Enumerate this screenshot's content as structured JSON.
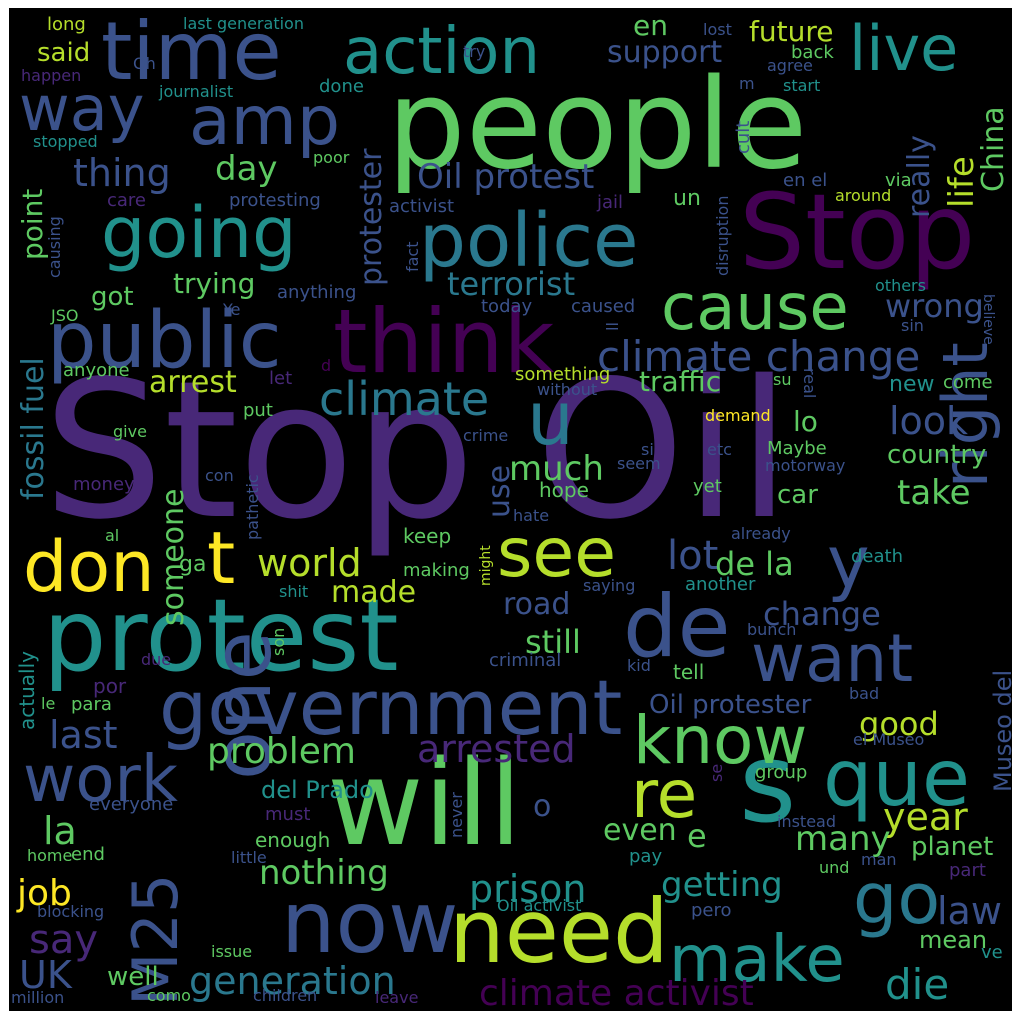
{
  "background": "#000000",
  "colormap": "viridis",
  "words": [
    {
      "text": "Stop Oil",
      "color": "#482878"
    },
    {
      "text": "people",
      "color": "#5ec962"
    },
    {
      "text": "Stop",
      "color": "#440154"
    },
    {
      "text": "protest",
      "color": "#21918c"
    },
    {
      "text": "will",
      "color": "#5ec962"
    },
    {
      "text": "think",
      "color": "#440154"
    },
    {
      "text": "government",
      "color": "#3b528b"
    },
    {
      "text": "public",
      "color": "#3b528b"
    },
    {
      "text": "time",
      "color": "#3b528b"
    },
    {
      "text": "need",
      "color": "#b5de2b"
    },
    {
      "text": "one",
      "color": "#3b528b"
    },
    {
      "text": "now",
      "color": "#3b528b"
    },
    {
      "text": "police",
      "color": "#2a788e"
    },
    {
      "text": "de",
      "color": "#3b528b"
    },
    {
      "text": "que",
      "color": "#21918c"
    },
    {
      "text": "action",
      "color": "#21918c"
    },
    {
      "text": "going",
      "color": "#21918c"
    },
    {
      "text": "amp",
      "color": "#3b528b"
    },
    {
      "text": "way",
      "color": "#3b528b"
    },
    {
      "text": "cause",
      "color": "#5ec962"
    },
    {
      "text": "s",
      "color": "#21918c"
    },
    {
      "text": "don",
      "color": "#fde725"
    },
    {
      "text": "t",
      "color": "#fde725"
    },
    {
      "text": "see",
      "color": "#b5de2b"
    },
    {
      "text": "want",
      "color": "#3b528b"
    },
    {
      "text": "right",
      "color": "#3b528b"
    },
    {
      "text": "y",
      "color": "#3b528b"
    },
    {
      "text": "u",
      "color": "#2a788e"
    },
    {
      "text": "know",
      "color": "#5ec962"
    },
    {
      "text": "work",
      "color": "#3b528b"
    },
    {
      "text": "make",
      "color": "#21918c"
    },
    {
      "text": "go",
      "color": "#2a788e"
    },
    {
      "text": "re",
      "color": "#b5de2b"
    },
    {
      "text": "M25",
      "color": "#3b528b"
    },
    {
      "text": "live",
      "color": "#21918c"
    },
    {
      "text": "climate change",
      "color": "#3b528b"
    },
    {
      "text": "climate",
      "color": "#2a788e"
    },
    {
      "text": "climate activist",
      "color": "#440154"
    },
    {
      "text": "generation",
      "color": "#2a788e"
    },
    {
      "text": "arrested",
      "color": "#482878"
    },
    {
      "text": "prison",
      "color": "#21918c"
    },
    {
      "text": "die",
      "color": "#21918c"
    },
    {
      "text": "world",
      "color": "#b5de2b"
    },
    {
      "text": "lot",
      "color": "#3b528b"
    },
    {
      "text": "thing",
      "color": "#3b528b"
    },
    {
      "text": "day",
      "color": "#5ec962"
    },
    {
      "text": "Oil protest",
      "color": "#3b528b"
    },
    {
      "text": "terrorist",
      "color": "#2a788e"
    },
    {
      "text": "protester",
      "color": "#3b528b"
    },
    {
      "text": "fossil fuel",
      "color": "#2a788e"
    },
    {
      "text": "point",
      "color": "#5ec962"
    },
    {
      "text": "last",
      "color": "#3b528b"
    },
    {
      "text": "problem",
      "color": "#5ec962"
    },
    {
      "text": "say",
      "color": "#482878"
    },
    {
      "text": "UK",
      "color": "#3b528b"
    },
    {
      "text": "job",
      "color": "#fde725"
    },
    {
      "text": "la",
      "color": "#5ec962"
    },
    {
      "text": "nothing",
      "color": "#5ec962"
    },
    {
      "text": "getting",
      "color": "#21918c"
    },
    {
      "text": "year",
      "color": "#b5de2b"
    },
    {
      "text": "many",
      "color": "#5ec962"
    },
    {
      "text": "law",
      "color": "#3b528b"
    },
    {
      "text": "take",
      "color": "#5ec962"
    },
    {
      "text": "look",
      "color": "#3b528b"
    },
    {
      "text": "life",
      "color": "#b5de2b"
    },
    {
      "text": "China",
      "color": "#5ec962"
    },
    {
      "text": "really",
      "color": "#3b528b"
    },
    {
      "text": "wrong",
      "color": "#3b528b"
    },
    {
      "text": "de la",
      "color": "#5ec962"
    },
    {
      "text": "change",
      "color": "#3b528b"
    },
    {
      "text": "still",
      "color": "#5ec962"
    },
    {
      "text": "road",
      "color": "#3b528b"
    },
    {
      "text": "made",
      "color": "#b5de2b"
    },
    {
      "text": "someone",
      "color": "#5ec962"
    },
    {
      "text": "much",
      "color": "#5ec962"
    },
    {
      "text": "use",
      "color": "#3b528b"
    },
    {
      "text": "arrest",
      "color": "#b5de2b"
    },
    {
      "text": "traffic",
      "color": "#5ec962"
    },
    {
      "text": "support",
      "color": "#3b528b"
    },
    {
      "text": "future",
      "color": "#b5de2b"
    },
    {
      "text": "en",
      "color": "#5ec962"
    },
    {
      "text": "said",
      "color": "#b5de2b"
    },
    {
      "text": "trying",
      "color": "#5ec962"
    },
    {
      "text": "got",
      "color": "#5ec962"
    },
    {
      "text": "good",
      "color": "#b5de2b"
    },
    {
      "text": "Oil protester",
      "color": "#3b528b"
    },
    {
      "text": "Museo del",
      "color": "#3b528b"
    },
    {
      "text": "del Prado",
      "color": "#21918c"
    },
    {
      "text": "even",
      "color": "#5ec962"
    },
    {
      "text": "e",
      "color": "#5ec962"
    },
    {
      "text": "o",
      "color": "#3b528b"
    },
    {
      "text": "well",
      "color": "#5ec962"
    },
    {
      "text": "planet",
      "color": "#5ec962"
    },
    {
      "text": "mean",
      "color": "#5ec962"
    },
    {
      "text": "country",
      "color": "#5ec962"
    },
    {
      "text": "car",
      "color": "#5ec962"
    },
    {
      "text": "lo",
      "color": "#5ec962"
    },
    {
      "text": "new",
      "color": "#21918c"
    },
    {
      "text": "long",
      "color": "#b5de2b"
    },
    {
      "text": "last generation",
      "color": "#21918c"
    },
    {
      "text": "lost",
      "color": "#3b528b"
    },
    {
      "text": "back",
      "color": "#5ec962"
    },
    {
      "text": "agree",
      "color": "#3b528b"
    },
    {
      "text": "start",
      "color": "#21918c"
    },
    {
      "text": "Oh",
      "color": "#3b528b"
    },
    {
      "text": "try",
      "color": "#3b528b"
    },
    {
      "text": "happen",
      "color": "#482878"
    },
    {
      "text": "journalist",
      "color": "#21918c"
    },
    {
      "text": "done",
      "color": "#21918c"
    },
    {
      "text": "stopped",
      "color": "#21918c"
    },
    {
      "text": "poor",
      "color": "#5ec962"
    },
    {
      "text": "cult",
      "color": "#3b528b"
    },
    {
      "text": "m",
      "color": "#3b528b"
    },
    {
      "text": "care",
      "color": "#482878"
    },
    {
      "text": "protesting",
      "color": "#3b528b"
    },
    {
      "text": "activist",
      "color": "#3b528b"
    },
    {
      "text": "jail",
      "color": "#482878"
    },
    {
      "text": "un",
      "color": "#5ec962"
    },
    {
      "text": "en el",
      "color": "#3b528b"
    },
    {
      "text": "via",
      "color": "#5ec962"
    },
    {
      "text": "around",
      "color": "#b5de2b"
    },
    {
      "text": "causing",
      "color": "#3b528b"
    },
    {
      "text": "fact",
      "color": "#3b528b"
    },
    {
      "text": "disruption",
      "color": "#3b528b"
    },
    {
      "text": "others",
      "color": "#21918c"
    },
    {
      "text": "believe",
      "color": "#3b528b"
    },
    {
      "text": "JSO",
      "color": "#5ec962"
    },
    {
      "text": "Ye",
      "color": "#3b528b"
    },
    {
      "text": "anything",
      "color": "#3b528b"
    },
    {
      "text": "today",
      "color": "#3b528b"
    },
    {
      "text": "caused",
      "color": "#3b528b"
    },
    {
      "text": "ll",
      "color": "#3b528b"
    },
    {
      "text": "sin",
      "color": "#3b528b"
    },
    {
      "text": "d",
      "color": "#440154"
    },
    {
      "text": "real",
      "color": "#3b528b"
    },
    {
      "text": "anyone",
      "color": "#5ec962"
    },
    {
      "text": "let",
      "color": "#482878"
    },
    {
      "text": "something",
      "color": "#b5de2b"
    },
    {
      "text": "without",
      "color": "#3b528b"
    },
    {
      "text": "su",
      "color": "#5ec962"
    },
    {
      "text": "come",
      "color": "#5ec962"
    },
    {
      "text": "put",
      "color": "#5ec962"
    },
    {
      "text": "demand",
      "color": "#fde725"
    },
    {
      "text": "give",
      "color": "#5ec962"
    },
    {
      "text": "crime",
      "color": "#3b528b"
    },
    {
      "text": "si",
      "color": "#3b528b"
    },
    {
      "text": "etc",
      "color": "#3b528b"
    },
    {
      "text": "Maybe",
      "color": "#5ec962"
    },
    {
      "text": "seem",
      "color": "#3b528b"
    },
    {
      "text": "motorway",
      "color": "#3b528b"
    },
    {
      "text": "money",
      "color": "#482878"
    },
    {
      "text": "con",
      "color": "#3b528b"
    },
    {
      "text": "pathetic",
      "color": "#3b528b"
    },
    {
      "text": "hope",
      "color": "#5ec962"
    },
    {
      "text": "yet",
      "color": "#5ec962"
    },
    {
      "text": "hate",
      "color": "#3b528b"
    },
    {
      "text": "al",
      "color": "#5ec962"
    },
    {
      "text": "keep",
      "color": "#5ec962"
    },
    {
      "text": "might",
      "color": "#b5de2b"
    },
    {
      "text": "already",
      "color": "#3b528b"
    },
    {
      "text": "death",
      "color": "#21918c"
    },
    {
      "text": "making",
      "color": "#5ec962"
    },
    {
      "text": "ga",
      "color": "#5ec962"
    },
    {
      "text": "another",
      "color": "#21918c"
    },
    {
      "text": "saying",
      "color": "#3b528b"
    },
    {
      "text": "shit",
      "color": "#21918c"
    },
    {
      "text": "actually",
      "color": "#21918c"
    },
    {
      "text": "son",
      "color": "#5ec962"
    },
    {
      "text": "bunch",
      "color": "#3b528b"
    },
    {
      "text": "criminal",
      "color": "#3b528b"
    },
    {
      "text": "due",
      "color": "#482878"
    },
    {
      "text": "kid",
      "color": "#3b528b"
    },
    {
      "text": "tell",
      "color": "#5ec962"
    },
    {
      "text": "por",
      "color": "#482878"
    },
    {
      "text": "bad",
      "color": "#3b528b"
    },
    {
      "text": "le",
      "color": "#5ec962"
    },
    {
      "text": "para",
      "color": "#5ec962"
    },
    {
      "text": "el Museo",
      "color": "#3b528b"
    },
    {
      "text": "group",
      "color": "#5ec962"
    },
    {
      "text": "se",
      "color": "#482878"
    },
    {
      "text": "everyone",
      "color": "#3b528b"
    },
    {
      "text": "must",
      "color": "#482878"
    },
    {
      "text": "never",
      "color": "#3b528b"
    },
    {
      "text": "instead",
      "color": "#3b528b"
    },
    {
      "text": "enough",
      "color": "#5ec962"
    },
    {
      "text": "home",
      "color": "#5ec962"
    },
    {
      "text": "end",
      "color": "#5ec962"
    },
    {
      "text": "little",
      "color": "#3b528b"
    },
    {
      "text": "pay",
      "color": "#21918c"
    },
    {
      "text": "man",
      "color": "#3b528b"
    },
    {
      "text": "und",
      "color": "#5ec962"
    },
    {
      "text": "part",
      "color": "#482878"
    },
    {
      "text": "blocking",
      "color": "#3b528b"
    },
    {
      "text": "Oil activist",
      "color": "#21918c"
    },
    {
      "text": "pero",
      "color": "#3b528b"
    },
    {
      "text": "issue",
      "color": "#5ec962"
    },
    {
      "text": "como",
      "color": "#5ec962"
    },
    {
      "text": "ve",
      "color": "#21918c"
    },
    {
      "text": "million",
      "color": "#3b528b"
    },
    {
      "text": "children",
      "color": "#3b528b"
    },
    {
      "text": "leave",
      "color": "#482878"
    }
  ]
}
